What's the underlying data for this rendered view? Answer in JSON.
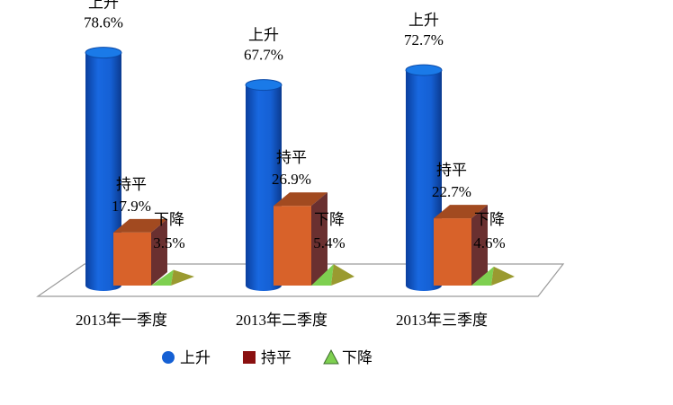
{
  "chart_data": {
    "type": "bar",
    "categories": [
      "2013年一季度",
      "2013年二季度",
      "2013年三季度"
    ],
    "series": [
      {
        "name": "上升",
        "values": [
          78.6,
          67.7,
          72.7
        ],
        "color": "#1560d4",
        "shape": "cylinder"
      },
      {
        "name": "持平",
        "values": [
          17.9,
          26.9,
          22.7
        ],
        "color": "#d8622a",
        "shape": "box"
      },
      {
        "name": "下降",
        "values": [
          3.5,
          5.4,
          4.6
        ],
        "color": "#7ed050",
        "shape": "pyramid"
      }
    ],
    "value_labels": [
      [
        "78.6%",
        "67.7%",
        "72.7%"
      ],
      [
        "17.9%",
        "26.9%",
        "22.7%"
      ],
      [
        "3.5%",
        "5.4%",
        "4.6%"
      ]
    ],
    "legend_position": "bottom",
    "grid": false
  }
}
